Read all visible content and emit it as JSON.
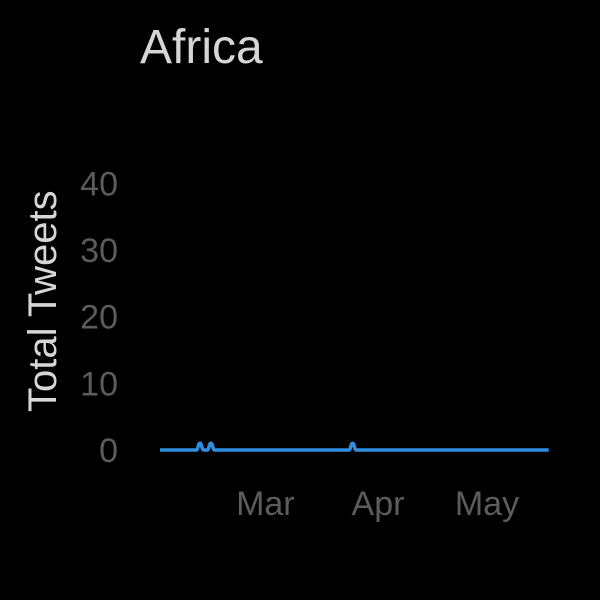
{
  "chart_data": {
    "type": "line",
    "title": "Africa",
    "xlabel": "",
    "ylabel": "Total Tweets",
    "ylim": [
      0,
      45
    ],
    "xlim": [
      "2020-02-01",
      "2020-05-20"
    ],
    "y_ticks": [
      0,
      10,
      20,
      30,
      40
    ],
    "x_ticks": [
      {
        "label": "Mar",
        "date": "2020-03-01"
      },
      {
        "label": "Apr",
        "date": "2020-04-01"
      },
      {
        "label": "May",
        "date": "2020-05-01"
      }
    ],
    "grid": false,
    "legend": "none",
    "series": [
      {
        "color": "#2e8fe0",
        "points": [
          [
            "2020-02-01",
            0
          ],
          [
            "2020-02-11",
            0
          ],
          [
            "2020-02-12",
            1
          ],
          [
            "2020-02-13",
            0
          ],
          [
            "2020-02-14",
            0
          ],
          [
            "2020-02-15",
            1
          ],
          [
            "2020-02-16",
            0
          ],
          [
            "2020-03-24",
            0
          ],
          [
            "2020-03-25",
            1
          ],
          [
            "2020-03-26",
            0
          ],
          [
            "2020-05-18",
            0
          ]
        ]
      }
    ]
  }
}
